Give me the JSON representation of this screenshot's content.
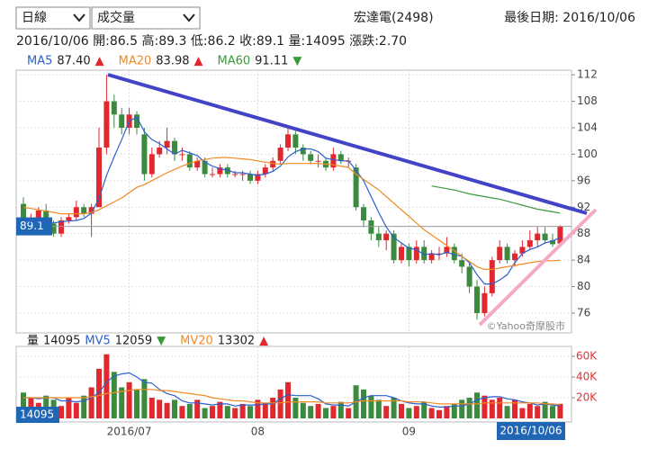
{
  "header": {
    "period": "日線",
    "indicator": "成交量",
    "stock": "宏達電(2498)",
    "last_date": "最後日期: 2016/10/06",
    "quote": "2016/10/06 開:86.5 高:89.3 低:86.2 收:89.1 量:14095 漲跌:2.70",
    "watermark": "©Yahoo奇摩股市"
  },
  "chart_data": [
    {
      "type": "candlestick",
      "categories": [
        null,
        null,
        null,
        null,
        null,
        null,
        null,
        null,
        null,
        null,
        null,
        null,
        null,
        null,
        "2016/07",
        null,
        null,
        null,
        null,
        null,
        null,
        null,
        null,
        null,
        null,
        null,
        null,
        null,
        null,
        null,
        null,
        "08",
        null,
        null,
        null,
        null,
        null,
        null,
        null,
        null,
        null,
        null,
        null,
        null,
        null,
        null,
        null,
        null,
        null,
        null,
        null,
        "09",
        null,
        null,
        null,
        null,
        null,
        null,
        null,
        null,
        null,
        null,
        null,
        null,
        null,
        null,
        null,
        null,
        null,
        null,
        null,
        "2016/10/06"
      ],
      "open": [
        92.5,
        89,
        90,
        91.5,
        89.5,
        88,
        90,
        90.5,
        92,
        91,
        92,
        101,
        108,
        106,
        104,
        106,
        103,
        97,
        100,
        101,
        102,
        100,
        100,
        98,
        99,
        97,
        97,
        98,
        97,
        97,
        97,
        96,
        97,
        98,
        99,
        101,
        103,
        101,
        100,
        99,
        99,
        98,
        100,
        99,
        98,
        92,
        90,
        88,
        87,
        88,
        84,
        86,
        84,
        86,
        84,
        85,
        85,
        86,
        84,
        83,
        80,
        76,
        79,
        84,
        86,
        84,
        85,
        86,
        87,
        88,
        87,
        86.5
      ],
      "high": [
        93.5,
        91,
        92,
        92.5,
        90,
        90.5,
        91,
        93,
        92.5,
        92.5,
        104,
        112,
        109,
        107,
        107,
        106.5,
        104,
        101,
        102,
        104,
        102.5,
        101,
        100.5,
        99.5,
        99.5,
        98,
        98.5,
        98.5,
        97.5,
        97.5,
        97.5,
        97.5,
        98.5,
        99.5,
        101.5,
        104,
        103.5,
        101.5,
        100.5,
        100,
        99.5,
        101,
        100.5,
        99.5,
        98.5,
        92.5,
        90.5,
        89,
        88.5,
        88.5,
        86.5,
        86.5,
        87,
        87,
        85.5,
        86,
        87.5,
        86.5,
        85,
        83.5,
        81,
        80,
        84.5,
        87,
        86.5,
        85.5,
        87,
        88.5,
        89,
        89,
        88,
        89.3
      ],
      "low": [
        88.5,
        88,
        89.5,
        89,
        87.5,
        87.5,
        89.5,
        90,
        90.5,
        87.5,
        92,
        100,
        104,
        103,
        103,
        103,
        96,
        96.5,
        99.5,
        100,
        99,
        99,
        97.5,
        97.5,
        96.5,
        96.5,
        96.5,
        96.5,
        96.5,
        96,
        95.5,
        95.5,
        96.5,
        97.5,
        98.5,
        100.5,
        100,
        99,
        98.5,
        98,
        97.5,
        97.5,
        98.5,
        98,
        91.5,
        89,
        87,
        86,
        85.5,
        83.5,
        83.5,
        83,
        83.5,
        83.5,
        83.5,
        84,
        84.5,
        83.5,
        82,
        79,
        75,
        75.5,
        78.5,
        83.5,
        83.5,
        83,
        84.5,
        85.5,
        86,
        86.5,
        86,
        86.2
      ],
      "close": [
        89,
        90,
        91.5,
        89.5,
        88,
        90,
        90.5,
        92,
        91,
        92,
        101,
        108,
        106,
        104,
        106,
        104,
        97,
        100,
        101,
        102,
        100,
        100,
        98,
        99,
        97,
        97,
        98,
        97,
        97,
        97,
        96,
        97,
        98,
        99,
        101,
        103,
        101,
        100,
        99,
        99,
        98,
        100,
        99,
        99,
        92,
        90,
        88,
        87,
        88,
        84,
        86,
        84,
        86,
        84,
        85,
        85,
        86,
        84,
        83,
        80,
        76,
        79,
        84,
        86,
        84,
        85,
        86,
        87,
        88,
        87,
        86.4,
        89.1
      ],
      "up_color": "#e0282e",
      "down_color": "#3b8a3e",
      "series": [
        {
          "name": "MA5",
          "color": "#2b5fd0",
          "legend_label": "87.40",
          "trend": "▲",
          "trend_color": "#e0282e",
          "values": [
            90,
            89.8,
            89.9,
            89.7,
            89.6,
            89.8,
            89.9,
            90,
            90.3,
            91.1,
            93.3,
            96.8,
            99.6,
            102.2,
            105,
            105.6,
            103.4,
            102.2,
            101.6,
            100.8,
            100,
            100.6,
            100.2,
            99.8,
            98.8,
            98.2,
            97.8,
            97.6,
            97.2,
            97.2,
            97,
            96.8,
            97,
            97.4,
            98.2,
            99.6,
            100.4,
            100.8,
            100.8,
            100.4,
            99.4,
            99.2,
            99,
            99,
            97.6,
            96,
            93.6,
            91.2,
            89,
            87.4,
            86.6,
            85.8,
            85.6,
            84.8,
            85,
            84.8,
            85.2,
            84.8,
            84.6,
            83.6,
            81.8,
            80.4,
            80.4,
            81,
            81.8,
            83.6,
            85,
            85.6,
            86,
            86.6,
            86.9,
            87.4
          ]
        },
        {
          "name": "MA20",
          "color": "#f08a24",
          "trend": "▲",
          "trend_color": "#e0282e",
          "values": [
            92,
            91.8,
            91.6,
            91.4,
            91.2,
            91,
            91,
            91,
            91,
            91.2,
            91.6,
            92.2,
            92.8,
            93.4,
            94.2,
            95,
            95.4,
            96,
            96.6,
            97.2,
            97.7,
            98.2,
            98.6,
            99,
            99.2,
            99.4,
            99.5,
            99.5,
            99.4,
            99.3,
            99.2,
            99,
            98.8,
            98.6,
            98.5,
            98.6,
            98.6,
            98.6,
            98.6,
            98.6,
            98.5,
            98.4,
            98.2,
            98,
            97,
            96.2,
            95.4,
            94.6,
            93.6,
            92.6,
            91.6,
            90.6,
            89.6,
            88.6,
            87.8,
            87,
            86.2,
            85.4,
            84.6,
            83.8,
            83,
            82.6,
            82.6,
            82.8,
            83,
            83.2,
            83.4,
            83.6,
            83.8,
            83.9,
            83.9,
            83.98
          ]
        },
        {
          "name": "MA60",
          "color": "#3a9a3a",
          "trend": "▼",
          "trend_color": "#3a9a3a",
          "values": [
            null,
            null,
            null,
            null,
            null,
            null,
            null,
            null,
            null,
            null,
            null,
            null,
            null,
            null,
            null,
            null,
            null,
            null,
            null,
            null,
            null,
            null,
            null,
            null,
            null,
            null,
            null,
            null,
            null,
            null,
            null,
            null,
            null,
            null,
            null,
            null,
            null,
            null,
            null,
            null,
            null,
            null,
            null,
            null,
            null,
            null,
            null,
            null,
            null,
            null,
            null,
            null,
            null,
            null,
            95.2,
            95,
            94.8,
            94.6,
            94.3,
            94,
            93.8,
            93.6,
            93.4,
            93.2,
            92.9,
            92.6,
            92.3,
            92,
            91.7,
            91.5,
            91.3,
            91.11
          ]
        }
      ],
      "ylim": [
        73,
        112.7
      ],
      "yticks": [
        76,
        80,
        84,
        88,
        92,
        96,
        100,
        104,
        108,
        112
      ],
      "grid": true
    },
    {
      "type": "bar",
      "name": "量",
      "trend_up": "▲",
      "trend_down": "▼",
      "values": [
        25000,
        20000,
        15000,
        22000,
        18000,
        12000,
        20000,
        15000,
        22000,
        30000,
        48000,
        62000,
        45000,
        30000,
        35000,
        28000,
        38000,
        20000,
        18000,
        15000,
        18000,
        12000,
        14000,
        18000,
        10000,
        12000,
        16000,
        12000,
        10000,
        14000,
        12000,
        18000,
        15000,
        20000,
        28000,
        35000,
        20000,
        15000,
        12000,
        14000,
        10000,
        12000,
        16000,
        10000,
        32000,
        28000,
        22000,
        18000,
        12000,
        20000,
        14000,
        10000,
        12000,
        16000,
        10000,
        8000,
        12000,
        14000,
        18000,
        20000,
        25000,
        22000,
        18000,
        20000,
        12000,
        18000,
        10000,
        14000,
        12000,
        16000,
        12000,
        14095
      ],
      "series": [
        {
          "name": "MV5",
          "color": "#2b5fd0",
          "trend": "▼",
          "trend_color": "#3a9a3a",
          "values": [
            20000,
            20000,
            19000,
            20000,
            20000,
            17000,
            17000,
            16000,
            17000,
            20000,
            25000,
            35000,
            41000,
            43000,
            44000,
            40000,
            35000,
            34000,
            28000,
            24000,
            22000,
            17000,
            15000,
            15000,
            14000,
            13000,
            14000,
            14000,
            12000,
            13000,
            13000,
            13000,
            14000,
            14000,
            19000,
            23000,
            22000,
            22000,
            22000,
            19000,
            14000,
            13000,
            13000,
            12000,
            16000,
            20000,
            22000,
            22000,
            22000,
            20000,
            17000,
            15000,
            14000,
            14000,
            12000,
            11000,
            11000,
            12000,
            12000,
            14000,
            18000,
            20000,
            21000,
            21000,
            19000,
            18000,
            16000,
            15000,
            13000,
            14000,
            13000,
            12059
          ]
        },
        {
          "name": "MV20",
          "color": "#f08a24",
          "trend": "▲",
          "trend_color": "#e0282e",
          "values": [
            20000,
            20000,
            20000,
            20000,
            20000,
            20000,
            20000,
            20000,
            20000,
            21000,
            22000,
            24000,
            25000,
            26000,
            27000,
            28000,
            28000,
            28000,
            27000,
            27000,
            26000,
            25000,
            24000,
            23000,
            22000,
            20000,
            19000,
            18000,
            17000,
            17000,
            16000,
            15000,
            15000,
            15000,
            15000,
            16000,
            16000,
            16000,
            16000,
            16000,
            15000,
            15000,
            15000,
            15000,
            16000,
            17000,
            17000,
            17000,
            17000,
            17000,
            17000,
            16000,
            16000,
            16000,
            15000,
            14000,
            14000,
            14000,
            14000,
            14000,
            14000,
            15000,
            15000,
            15000,
            15000,
            15000,
            15000,
            15000,
            15000,
            14000,
            14000,
            13302
          ]
        }
      ],
      "ylim": [
        0,
        69600
      ],
      "yticks": [
        {
          "value": 20000,
          "label": "20K"
        },
        {
          "value": 40000,
          "label": "40K"
        },
        {
          "value": 60000,
          "label": "60K"
        }
      ],
      "grid": true
    }
  ]
}
